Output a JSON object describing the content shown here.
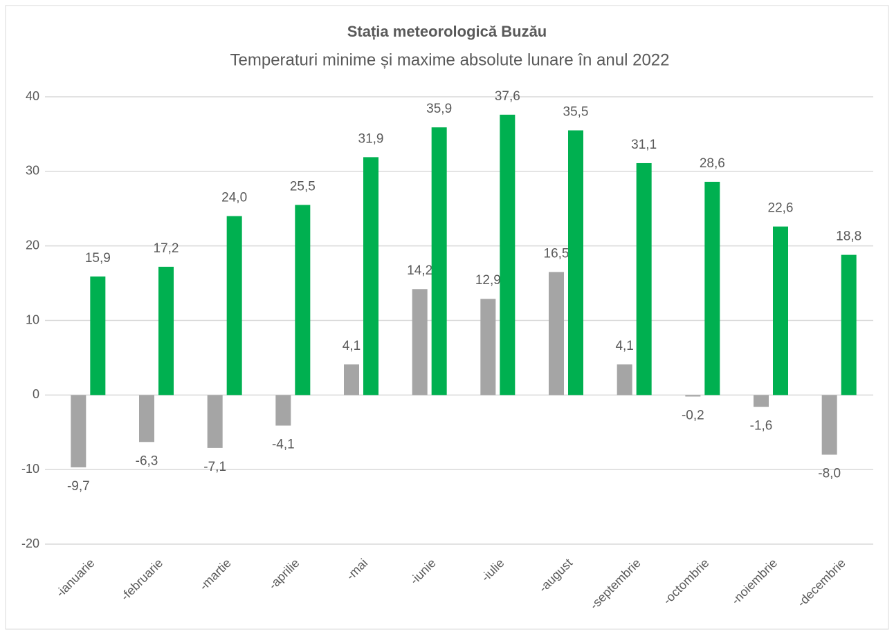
{
  "chart_data": {
    "type": "bar",
    "title": "Stația meteorologică Buzău",
    "subtitle": "Temperaturi minime și maxime absolute lunare în anul 2022",
    "categories": [
      "-ianuarie",
      "-februarie",
      "-martie",
      "-aprilie",
      "-mai",
      "-iunie",
      "-iulie",
      "-august",
      "-septembrie",
      "-octombrie",
      "-noiembrie",
      "-decembrie"
    ],
    "series": [
      {
        "color": "#a5a5a5",
        "values": [
          -9.7,
          -6.3,
          -7.1,
          -4.1,
          4.1,
          14.2,
          12.9,
          16.5,
          4.1,
          -0.2,
          -1.6,
          -8.0
        ],
        "value_labels": [
          "-9,7",
          "-6,3",
          "-7,1",
          "-4,1",
          "4,1",
          "14,2",
          "12,9",
          "16,5",
          "4,1",
          "-0,2",
          "-1,6",
          "-8,0"
        ]
      },
      {
        "color": "#00b050",
        "values": [
          15.9,
          17.2,
          24.0,
          25.5,
          31.9,
          35.9,
          37.6,
          35.5,
          31.1,
          28.6,
          22.6,
          18.8
        ],
        "value_labels": [
          "15,9",
          "17,2",
          "24,0",
          "25,5",
          "31,9",
          "35,9",
          "37,6",
          "35,5",
          "31,1",
          "28,6",
          "22,6",
          "18,8"
        ]
      }
    ],
    "ylim": [
      -20,
      40
    ],
    "yticks": [
      -20,
      -10,
      0,
      10,
      20,
      30,
      40
    ],
    "grid": true
  }
}
